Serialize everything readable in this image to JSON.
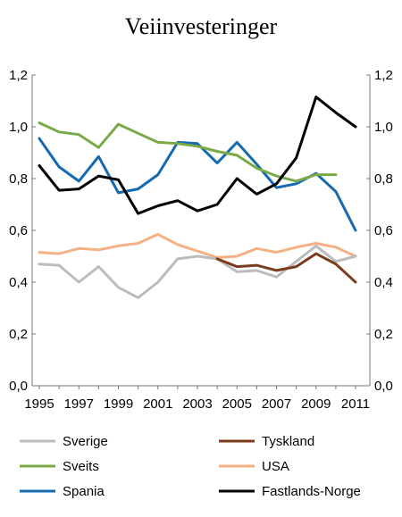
{
  "chart_data": {
    "type": "line",
    "title": "Veiinvesteringer",
    "x_tick_labels": [
      "1995",
      "1997",
      "1999",
      "2001",
      "2003",
      "2005",
      "2007",
      "2009",
      "2011"
    ],
    "y_tick_labels": [
      "0,0",
      "0,2",
      "0,4",
      "0,6",
      "0,8",
      "1,0",
      "1,2"
    ],
    "y_ticks": [
      0,
      0.2,
      0.4,
      0.6,
      0.8,
      1.0,
      1.2
    ],
    "xlim": [
      1995,
      2011
    ],
    "ylim": [
      0,
      1.2
    ],
    "grid": false,
    "legend_position": "bottom",
    "series": [
      {
        "name": "Sverige",
        "color": "#bcbcbc",
        "x": [
          1995,
          1996,
          1997,
          1998,
          1999,
          2000,
          2001,
          2002,
          2003,
          2004,
          2005,
          2006,
          2007,
          2008,
          2009,
          2010,
          2011
        ],
        "values": [
          0.47,
          0.465,
          0.4,
          0.46,
          0.38,
          0.34,
          0.4,
          0.49,
          0.5,
          0.49,
          0.44,
          0.445,
          0.42,
          0.48,
          0.54,
          0.48,
          0.5
        ]
      },
      {
        "name": "Tyskland",
        "color": "#7a3c1c",
        "x": [
          2004,
          2005,
          2006,
          2007,
          2008,
          2009,
          2010,
          2011
        ],
        "values": [
          0.49,
          0.46,
          0.465,
          0.445,
          0.46,
          0.51,
          0.47,
          0.4
        ]
      },
      {
        "name": "Sveits",
        "color": "#7aaa48",
        "x": [
          1995,
          1996,
          1997,
          1998,
          1999,
          2000,
          2001,
          2002,
          2003,
          2004,
          2005,
          2006,
          2007,
          2008,
          2009,
          2010
        ],
        "values": [
          1.015,
          0.98,
          0.97,
          0.92,
          1.01,
          0.975,
          0.94,
          0.935,
          0.925,
          0.905,
          0.89,
          0.84,
          0.81,
          0.79,
          0.815,
          0.815
        ]
      },
      {
        "name": "USA",
        "color": "#f5b184",
        "x": [
          1995,
          1996,
          1997,
          1998,
          1999,
          2000,
          2001,
          2002,
          2003,
          2004,
          2005,
          2006,
          2007,
          2008,
          2009,
          2010,
          2011
        ],
        "values": [
          0.515,
          0.51,
          0.53,
          0.525,
          0.54,
          0.55,
          0.585,
          0.545,
          0.52,
          0.495,
          0.5,
          0.53,
          0.515,
          0.535,
          0.55,
          0.535,
          0.5
        ]
      },
      {
        "name": "Spania",
        "color": "#1469b0",
        "x": [
          1995,
          1996,
          1997,
          1998,
          1999,
          2000,
          2001,
          2002,
          2003,
          2004,
          2005,
          2006,
          2007,
          2008,
          2009,
          2010,
          2011
        ],
        "values": [
          0.955,
          0.845,
          0.79,
          0.885,
          0.745,
          0.76,
          0.815,
          0.94,
          0.935,
          0.86,
          0.94,
          0.855,
          0.765,
          0.78,
          0.82,
          0.75,
          0.6
        ]
      },
      {
        "name": "Fastlands-Norge",
        "color": "#000000",
        "x": [
          1995,
          1996,
          1997,
          1998,
          1999,
          2000,
          2001,
          2002,
          2003,
          2004,
          2005,
          2006,
          2007,
          2008,
          2009,
          2010,
          2011
        ],
        "values": [
          0.85,
          0.755,
          0.76,
          0.81,
          0.795,
          0.665,
          0.695,
          0.715,
          0.675,
          0.7,
          0.8,
          0.74,
          0.78,
          0.88,
          1.115,
          1.055,
          1.0
        ]
      },
      {
        "name": "Sverige",
        "color": "#bcbcbc",
        "x": [],
        "values": []
      }
    ],
    "legend": [
      {
        "name": "Sverige",
        "color": "#bcbcbc"
      },
      {
        "name": "Tyskland",
        "color": "#7a3c1c"
      },
      {
        "name": "Sveits",
        "color": "#7aaa48"
      },
      {
        "name": "USA",
        "color": "#f5b184"
      },
      {
        "name": "Spania",
        "color": "#1469b0"
      },
      {
        "name": "Fastlands-Norge",
        "color": "#000000"
      }
    ]
  }
}
